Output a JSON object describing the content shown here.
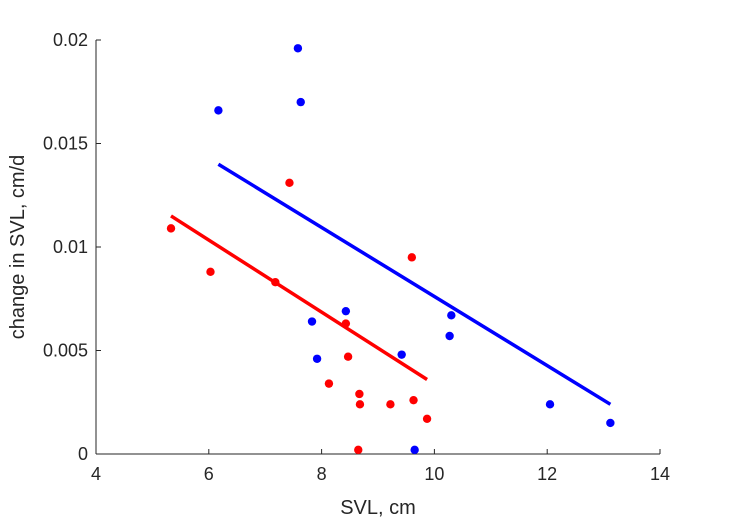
{
  "chart_data": {
    "type": "scatter",
    "title": "",
    "xlabel": "SVL, cm",
    "ylabel": "change in SVL, cm/d",
    "xlim": [
      4,
      14
    ],
    "ylim": [
      0,
      0.02
    ],
    "x_ticks": [
      "4",
      "6",
      "8",
      "10",
      "12",
      "14"
    ],
    "y_ticks": [
      "0",
      "0.005",
      "0.01",
      "0.015",
      "0.02"
    ],
    "grid": false,
    "legend": "none",
    "series": [
      {
        "color": "#0000ff",
        "points": [
          {
            "x": 6.17,
            "y": 0.0166
          },
          {
            "x": 7.58,
            "y": 0.0196
          },
          {
            "x": 7.63,
            "y": 0.017
          },
          {
            "x": 7.83,
            "y": 0.0064
          },
          {
            "x": 7.92,
            "y": 0.0046
          },
          {
            "x": 8.43,
            "y": 0.0069
          },
          {
            "x": 9.42,
            "y": 0.0048
          },
          {
            "x": 9.65,
            "y": 0.0002
          },
          {
            "x": 10.27,
            "y": 0.0057
          },
          {
            "x": 10.3,
            "y": 0.0067
          },
          {
            "x": 12.05,
            "y": 0.0024
          },
          {
            "x": 13.12,
            "y": 0.0015
          }
        ],
        "fit": {
          "x": [
            6.17,
            13.12
          ],
          "y": [
            0.014,
            0.0024
          ]
        }
      },
      {
        "color": "#ff0000",
        "points": [
          {
            "x": 5.33,
            "y": 0.0109
          },
          {
            "x": 6.03,
            "y": 0.0088
          },
          {
            "x": 7.18,
            "y": 0.0083
          },
          {
            "x": 7.43,
            "y": 0.0131
          },
          {
            "x": 8.13,
            "y": 0.0034
          },
          {
            "x": 8.43,
            "y": 0.0063
          },
          {
            "x": 8.47,
            "y": 0.0047
          },
          {
            "x": 8.65,
            "y": 0.0002
          },
          {
            "x": 8.67,
            "y": 0.0029
          },
          {
            "x": 8.68,
            "y": 0.0024
          },
          {
            "x": 9.22,
            "y": 0.0024
          },
          {
            "x": 9.6,
            "y": 0.0095
          },
          {
            "x": 9.63,
            "y": 0.0026
          },
          {
            "x": 9.87,
            "y": 0.0017
          }
        ],
        "fit": {
          "x": [
            5.33,
            9.87
          ],
          "y": [
            0.0115,
            0.0036
          ]
        }
      }
    ]
  }
}
